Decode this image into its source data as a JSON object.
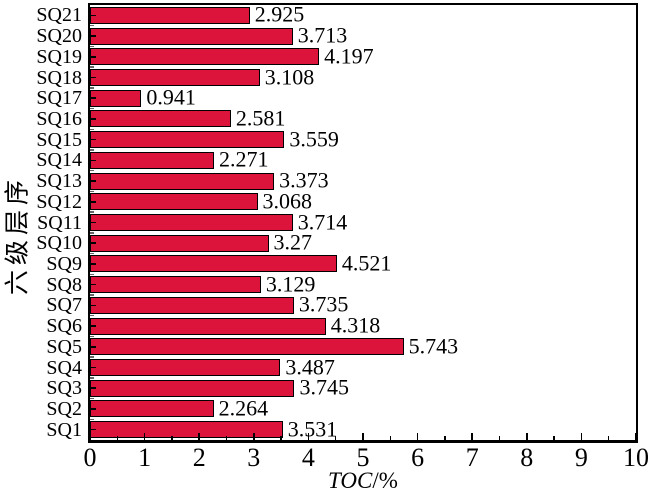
{
  "chart_data": {
    "type": "bar",
    "orientation": "horizontal",
    "title": "",
    "xlabel_italic": "TOC",
    "xlabel_unit": "/%",
    "xlabel_full": "TOC/%",
    "ylabel": "六级层序",
    "xlim": [
      0,
      10
    ],
    "x_major_ticks": [
      0,
      1,
      2,
      3,
      4,
      5,
      6,
      7,
      8,
      9,
      10
    ],
    "x_minor_step": 0.5,
    "grid": "off",
    "legend": "none",
    "bar_color": "#dc143c",
    "bar_border_color": "#000000",
    "categories_top_to_bottom": [
      "SQ21",
      "SQ20",
      "SQ19",
      "SQ18",
      "SQ17",
      "SQ16",
      "SQ15",
      "SQ14",
      "SQ13",
      "SQ12",
      "SQ11",
      "SQ10",
      "SQ9",
      "SQ8",
      "SQ7",
      "SQ6",
      "SQ5",
      "SQ4",
      "SQ3",
      "SQ2",
      "SQ1"
    ],
    "values_top_to_bottom": [
      2.925,
      3.713,
      4.197,
      3.108,
      0.941,
      2.581,
      3.559,
      2.271,
      3.373,
      3.068,
      3.714,
      3.27,
      4.521,
      3.129,
      3.735,
      4.318,
      5.743,
      3.487,
      3.745,
      2.264,
      3.531
    ],
    "value_labels_top_to_bottom": [
      "2.925",
      "3.713",
      "4.197",
      "3.108",
      "0.941",
      "2.581",
      "3.559",
      "2.271",
      "3.373",
      "3.068",
      "3.714",
      "3.27",
      "4.521",
      "3.129",
      "3.735",
      "4.318",
      "5.743",
      "3.487",
      "3.745",
      "2.264",
      "3.531"
    ]
  }
}
